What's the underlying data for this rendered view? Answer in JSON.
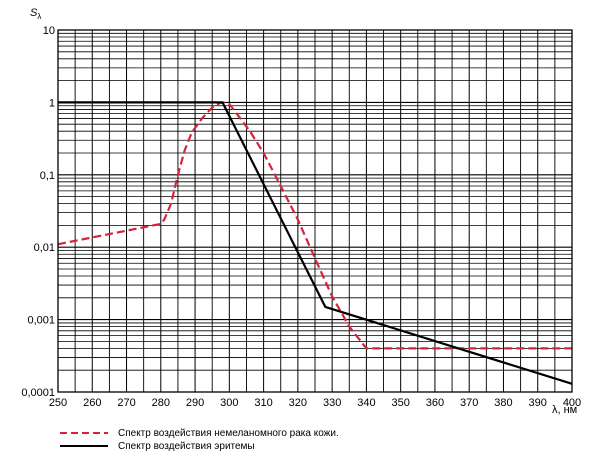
{
  "chart_data": {
    "type": "line",
    "ylabel": "S",
    "ylabel_sub": "λ",
    "xlabel": "λ, нм",
    "y_scale": "log",
    "xlim": [
      250,
      400
    ],
    "ylim": [
      0.0001,
      10
    ],
    "grid": true,
    "legend_position": "bottom-left",
    "x_ticks": [
      "250",
      "260",
      "270",
      "280",
      "290",
      "300",
      "310",
      "320",
      "330",
      "340",
      "350",
      "360",
      "370",
      "380",
      "390",
      "400"
    ],
    "y_ticks": [
      "0,0001",
      "0,001",
      "0,01",
      "0,1",
      "1",
      "10"
    ],
    "series": [
      {
        "name": "Спектр воздействия немеланомного рака кожи.",
        "color": "#d4243a",
        "style": "dashed",
        "x": [
          250,
          280,
          281,
          283,
          285,
          287,
          289,
          292,
          295,
          297,
          298,
          300,
          303,
          306,
          310,
          315,
          320,
          325,
          330,
          335,
          340,
          400
        ],
        "y": [
          0.011,
          0.021,
          0.024,
          0.04,
          0.1,
          0.22,
          0.38,
          0.6,
          0.85,
          0.97,
          1.0,
          0.95,
          0.62,
          0.4,
          0.2,
          0.07,
          0.024,
          0.007,
          0.0021,
          0.0008,
          0.0004,
          0.0004
        ]
      },
      {
        "name": "Спектр воздействия эритемы",
        "color": "#000000",
        "style": "solid",
        "x": [
          250,
          298,
          328,
          400
        ],
        "y": [
          1,
          1,
          0.0015,
          0.00013
        ]
      }
    ]
  }
}
